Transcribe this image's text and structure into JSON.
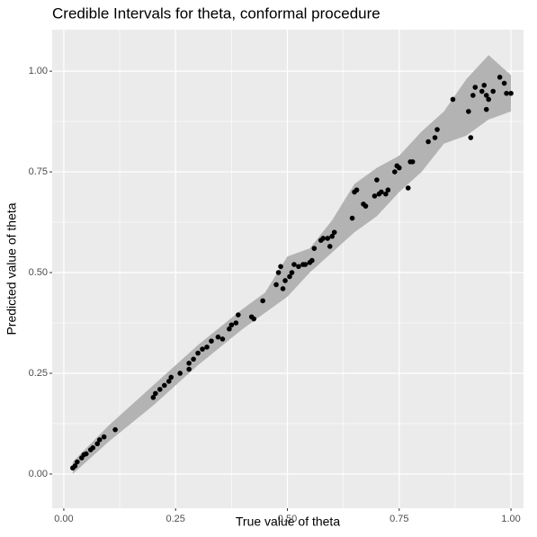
{
  "chart_data": {
    "type": "scatter",
    "title": "Credible Intervals for theta, conformal procedure",
    "x_label": "True value of theta",
    "y_label": "Predicted value of theta",
    "xlim": [
      -0.026,
      1.028
    ],
    "ylim": [
      -0.085,
      1.103
    ],
    "xticks": [
      {
        "value": 0,
        "label": "0.00"
      },
      {
        "value": 0.25,
        "label": "0.25"
      },
      {
        "value": 0.5,
        "label": "0.50"
      },
      {
        "value": 0.75,
        "label": "0.75"
      },
      {
        "value": 1,
        "label": "1.00"
      }
    ],
    "yticks": [
      {
        "value": 0,
        "label": "0.00"
      },
      {
        "value": 0.25,
        "label": "0.25"
      },
      {
        "value": 0.5,
        "label": "0.50"
      },
      {
        "value": 0.75,
        "label": "0.75"
      },
      {
        "value": 1,
        "label": "1.00"
      }
    ],
    "grid": true,
    "point_color": "#000000",
    "ribbon_color": "#b3b3b3",
    "x": [
      0.02,
      0.025,
      0.03,
      0.04,
      0.045,
      0.05,
      0.06,
      0.065,
      0.075,
      0.08,
      0.09,
      0.115,
      0.2,
      0.205,
      0.215,
      0.225,
      0.235,
      0.24,
      0.26,
      0.28,
      0.28,
      0.29,
      0.3,
      0.31,
      0.32,
      0.33,
      0.345,
      0.355,
      0.37,
      0.375,
      0.385,
      0.39,
      0.42,
      0.425,
      0.445,
      0.475,
      0.48,
      0.485,
      0.49,
      0.495,
      0.505,
      0.51,
      0.515,
      0.525,
      0.535,
      0.54,
      0.55,
      0.555,
      0.56,
      0.575,
      0.58,
      0.59,
      0.595,
      0.6,
      0.605,
      0.645,
      0.65,
      0.655,
      0.67,
      0.675,
      0.695,
      0.7,
      0.705,
      0.71,
      0.72,
      0.725,
      0.74,
      0.745,
      0.75,
      0.77,
      0.775,
      0.78,
      0.815,
      0.83,
      0.835,
      0.87,
      0.905,
      0.91,
      0.915,
      0.92,
      0.935,
      0.94,
      0.945,
      0.945,
      0.95,
      0.96,
      0.975,
      0.985,
      0.99,
      1.0
    ],
    "values": [
      0.015,
      0.02,
      0.03,
      0.04,
      0.048,
      0.05,
      0.06,
      0.065,
      0.075,
      0.085,
      0.092,
      0.11,
      0.19,
      0.2,
      0.21,
      0.22,
      0.23,
      0.24,
      0.25,
      0.26,
      0.275,
      0.285,
      0.3,
      0.31,
      0.315,
      0.33,
      0.34,
      0.335,
      0.36,
      0.37,
      0.375,
      0.395,
      0.39,
      0.385,
      0.43,
      0.47,
      0.5,
      0.515,
      0.46,
      0.48,
      0.49,
      0.5,
      0.52,
      0.515,
      0.52,
      0.52,
      0.525,
      0.53,
      0.56,
      0.58,
      0.585,
      0.585,
      0.565,
      0.59,
      0.6,
      0.635,
      0.7,
      0.705,
      0.67,
      0.665,
      0.69,
      0.73,
      0.695,
      0.7,
      0.695,
      0.705,
      0.75,
      0.765,
      0.76,
      0.71,
      0.775,
      0.775,
      0.825,
      0.835,
      0.855,
      0.93,
      0.9,
      0.835,
      0.94,
      0.96,
      0.95,
      0.965,
      0.905,
      0.94,
      0.93,
      0.95,
      0.985,
      0.97,
      0.945,
      0.945
    ],
    "ribbon": {
      "x": [
        0.02,
        0.1,
        0.2,
        0.3,
        0.4,
        0.45,
        0.5,
        0.55,
        0.6,
        0.65,
        0.7,
        0.75,
        0.8,
        0.85,
        0.9,
        0.95,
        1.0
      ],
      "lower": [
        0.0,
        0.08,
        0.17,
        0.27,
        0.36,
        0.4,
        0.44,
        0.5,
        0.55,
        0.6,
        0.64,
        0.7,
        0.75,
        0.82,
        0.84,
        0.88,
        0.9
      ],
      "upper": [
        0.03,
        0.12,
        0.22,
        0.32,
        0.41,
        0.45,
        0.54,
        0.56,
        0.63,
        0.72,
        0.76,
        0.79,
        0.85,
        0.9,
        0.98,
        1.04,
        0.99
      ]
    }
  }
}
